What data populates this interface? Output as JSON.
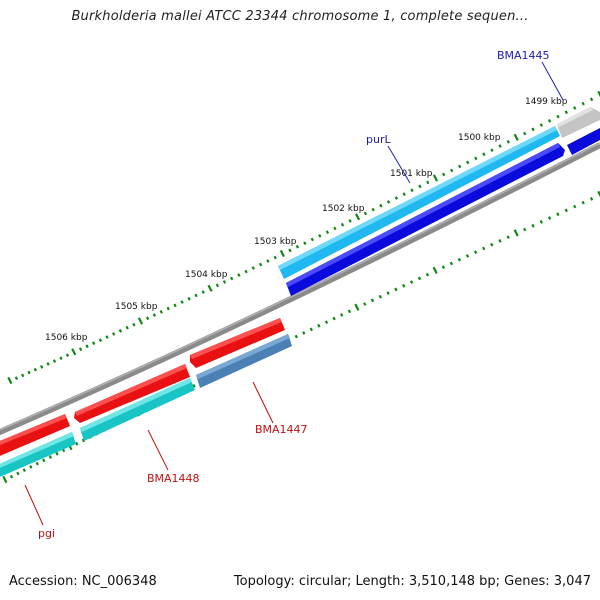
{
  "title": "Burkholderia mallei ATCC 23344 chromosome 1, complete sequen...",
  "footer": {
    "accession": "Accession: NC_006348",
    "summary": "Topology: circular; Length: 3,510,148 bp; Genes: 3,047"
  },
  "colors": {
    "forward_gene": "#1010e0",
    "forward_cds": "#20c0f8",
    "reverse_gene": "#e01010",
    "reverse_cds": "#18c8c8",
    "grey_gene": "#c8c8c8",
    "steelblue_cds": "#4a7fb0",
    "backbone": "#888888",
    "tick": "#118811"
  },
  "scale": {
    "labels": [
      "1499 kbp",
      "1500 kbp",
      "1501 kbp",
      "1502 kbp",
      "1503 kbp",
      "1504 kbp",
      "1505 kbp",
      "1506 kbp"
    ]
  },
  "genes": {
    "forward": [
      {
        "name": "BMA1445"
      },
      {
        "name": "purL"
      }
    ],
    "reverse": [
      {
        "name": "BMA1447"
      },
      {
        "name": "BMA1448"
      },
      {
        "name": "pgi"
      }
    ]
  }
}
